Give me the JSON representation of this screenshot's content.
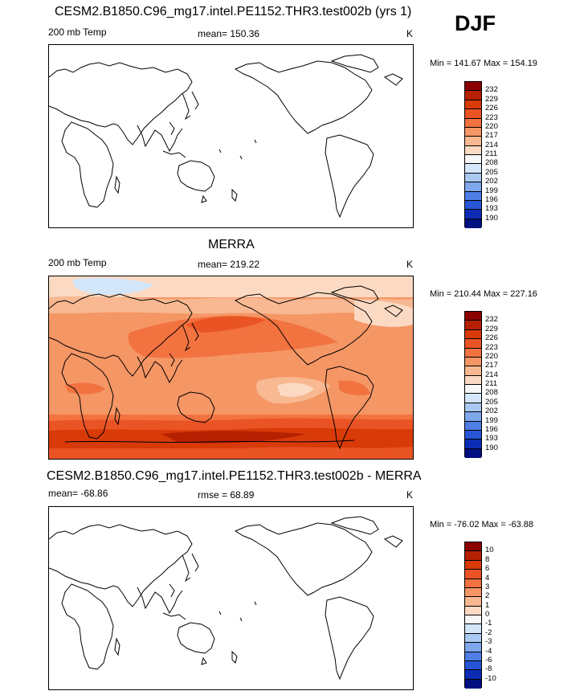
{
  "season": "DJF",
  "panels": [
    {
      "title": "CESM2.B1850.C96_mg17.intel.PE1152.THR3.test002b (yrs 1)",
      "left_label": "200 mb Temp",
      "center_label": "mean= 150.36",
      "units": "K",
      "minmax": "Min = 141.67 Max = 154.19"
    },
    {
      "title": "MERRA",
      "left_label": "200 mb Temp",
      "center_label": "mean= 219.22",
      "units": "K",
      "minmax": "Min = 210.44 Max = 227.16"
    },
    {
      "title": "CESM2.B1850.C96_mg17.intel.PE1152.THR3.test002b - MERRA",
      "left_label": "mean= -68.86",
      "center_label": "rmse =  68.89",
      "units": "K",
      "minmax": "Min = -76.02 Max = -63.88"
    }
  ],
  "colorbars": {
    "temperature": {
      "labels": [
        "232",
        "229",
        "226",
        "223",
        "220",
        "217",
        "214",
        "211",
        "208",
        "205",
        "202",
        "199",
        "196",
        "193",
        "190"
      ],
      "colors": [
        "#8b0000",
        "#b52000",
        "#d83a08",
        "#ea5424",
        "#f27240",
        "#f59665",
        "#f8b891",
        "#fbd9c2",
        "#f7f7f7",
        "#d4e6fa",
        "#a9c8f2",
        "#7ea7ec",
        "#4f7ee6",
        "#2855d6",
        "#0d2cb4",
        "#001080"
      ]
    },
    "difference": {
      "labels": [
        "10",
        "8",
        "6",
        "4",
        "3",
        "2",
        "1",
        "0",
        "-1",
        "-2",
        "-3",
        "-4",
        "-6",
        "-8",
        "-10"
      ],
      "colors": [
        "#8b0000",
        "#b52000",
        "#d83a08",
        "#ea5424",
        "#f27240",
        "#f59665",
        "#f8b891",
        "#fbd9c2",
        "#f7f7f7",
        "#d4e6fa",
        "#a9c8f2",
        "#7ea7ec",
        "#4f7ee6",
        "#2855d6",
        "#0d2cb4",
        "#001080"
      ]
    }
  }
}
